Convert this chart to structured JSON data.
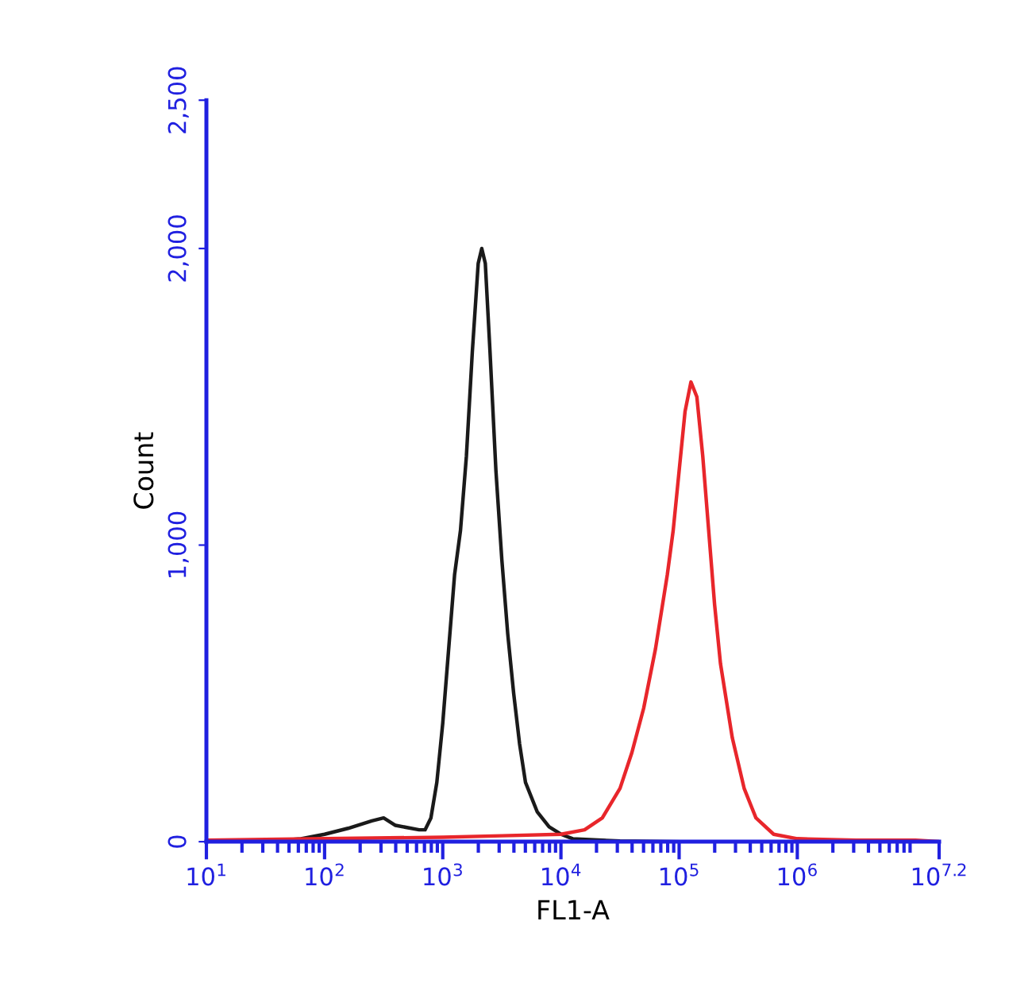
{
  "chart_data": {
    "type": "line",
    "xlabel": "FL1-A",
    "ylabel": "Count",
    "log": "x",
    "xlim": [
      10,
      15848932
    ],
    "xticks": [
      {
        "value": 10,
        "label": "10$^{1}$"
      },
      {
        "value": 100,
        "label": "10$^{2}$"
      },
      {
        "value": 1000,
        "label": "10$^{3}$"
      },
      {
        "value": 10000,
        "label": "10$^{4}$"
      },
      {
        "value": 100000,
        "label": "10$^{5}$"
      },
      {
        "value": 1000000,
        "label": "10$^{6}$"
      },
      {
        "value": 15848932,
        "label": "10$^{7.2}$"
      }
    ],
    "ylim": [
      0,
      2500
    ],
    "yticks": [
      0,
      {
        "value": 1000,
        "label": "1,000"
      },
      {
        "value": 2000,
        "label": "2,000"
      },
      {
        "value": 2500,
        "label": "2,500"
      }
    ],
    "grid": false,
    "marker": "none",
    "line_style": "solid",
    "series": [
      {
        "color": "#1a1a1a",
        "x": [
          10,
          31.6,
          63.1,
          100,
          158,
          251,
          316,
          398,
          631,
          708,
          794,
          891,
          1000,
          1122,
          1259,
          1413,
          1585,
          1778,
          1995,
          2138,
          2291,
          2512,
          2818,
          3162,
          3548,
          3981,
          4467,
          5012,
          6310,
          7943,
          10000,
          12589,
          31623,
          100000
        ],
        "values": [
          0,
          0,
          10,
          25,
          45,
          70,
          80,
          55,
          40,
          40,
          80,
          200,
          400,
          650,
          900,
          1050,
          1300,
          1650,
          1950,
          2000,
          1950,
          1650,
          1250,
          950,
          700,
          500,
          330,
          200,
          100,
          50,
          25,
          10,
          2,
          0
        ]
      },
      {
        "color": "#e8262b",
        "x": [
          10,
          100,
          1000,
          3162,
          10000,
          15849,
          22387,
          31623,
          39811,
          50119,
          63096,
          79433,
          89125,
          100000,
          112202,
          125893,
          141254,
          158489,
          177828,
          199526,
          223872,
          281838,
          354813,
          446684,
          630957,
          1000000,
          3162278,
          10000000,
          15848932
        ],
        "values": [
          5,
          10,
          15,
          20,
          25,
          40,
          80,
          180,
          300,
          450,
          650,
          900,
          1050,
          1250,
          1450,
          1550,
          1500,
          1300,
          1050,
          800,
          600,
          350,
          180,
          80,
          25,
          10,
          5,
          5,
          0
        ]
      }
    ]
  }
}
